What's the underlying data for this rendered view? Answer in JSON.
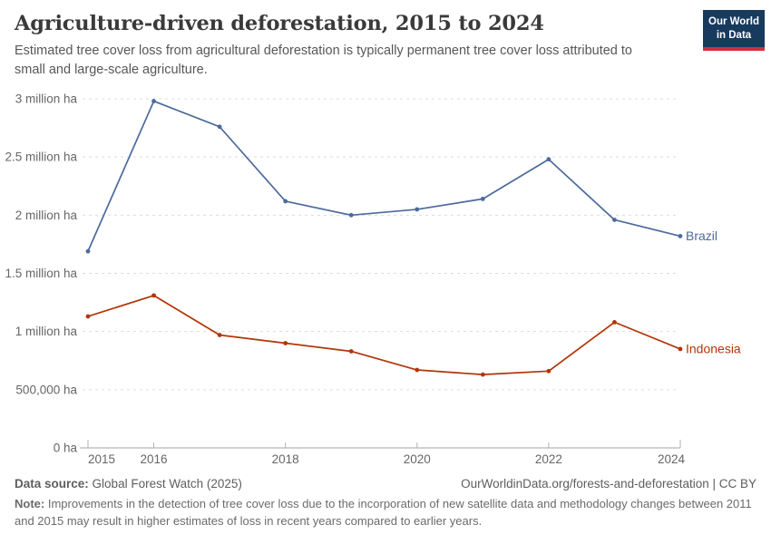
{
  "header": {
    "title": "Agriculture-driven deforestation, 2015 to 2024",
    "subtitle": "Estimated tree cover loss from agricultural deforestation is typically permanent tree cover loss attributed to small and large-scale agriculture.",
    "logo": {
      "line1": "Our World",
      "line2": "in Data",
      "bg_color": "#173a5d",
      "accent_color": "#cf303e"
    }
  },
  "chart_data": {
    "type": "line",
    "title": "Agriculture-driven deforestation, 2015 to 2024",
    "xlabel": "",
    "ylabel": "",
    "values_unit": "million ha",
    "xlim": [
      2015,
      2024
    ],
    "ylim": [
      0,
      3
    ],
    "grid": "horizontal dashed",
    "legend_position": "end-of-line labels",
    "x": [
      2015,
      2016,
      2017,
      2018,
      2019,
      2020,
      2021,
      2022,
      2023,
      2024
    ],
    "x_tick_years": [
      2015,
      2016,
      2018,
      2020,
      2022,
      2024
    ],
    "y_ticks": [
      {
        "value": 0,
        "label": "0 ha"
      },
      {
        "value": 0.5,
        "label": "500,000 ha"
      },
      {
        "value": 1,
        "label": "1 million ha"
      },
      {
        "value": 1.5,
        "label": "1.5 million ha"
      },
      {
        "value": 2,
        "label": "2 million ha"
      },
      {
        "value": 2.5,
        "label": "2.5 million ha"
      },
      {
        "value": 3,
        "label": "3 million ha"
      }
    ],
    "series": [
      {
        "name": "Brazil",
        "color": "#4C6A9C",
        "values": [
          1.69,
          2.98,
          2.76,
          2.12,
          2.0,
          2.05,
          2.14,
          2.48,
          1.96,
          1.82
        ]
      },
      {
        "name": "Indonesia",
        "color": "#B13507",
        "values": [
          1.13,
          1.31,
          0.97,
          0.9,
          0.83,
          0.67,
          0.63,
          0.66,
          1.08,
          0.85
        ]
      }
    ],
    "style": {
      "gridline_color": "#dcdcdc",
      "axis_color": "#a3a3a3",
      "tick_color": "#b3b3b3",
      "tick_label_color": "#666666"
    }
  },
  "footer": {
    "data_source_label": "Data source:",
    "data_source_value": "Global Forest Watch (2025)",
    "attribution": "OurWorldinData.org/forests-and-deforestation | CC BY",
    "note_label": "Note:",
    "note_text": "Improvements in the detection of tree cover loss due to the incorporation of new satellite data and methodology changes between 2011 and 2015 may result in higher estimates of loss in recent years compared to earlier years."
  }
}
